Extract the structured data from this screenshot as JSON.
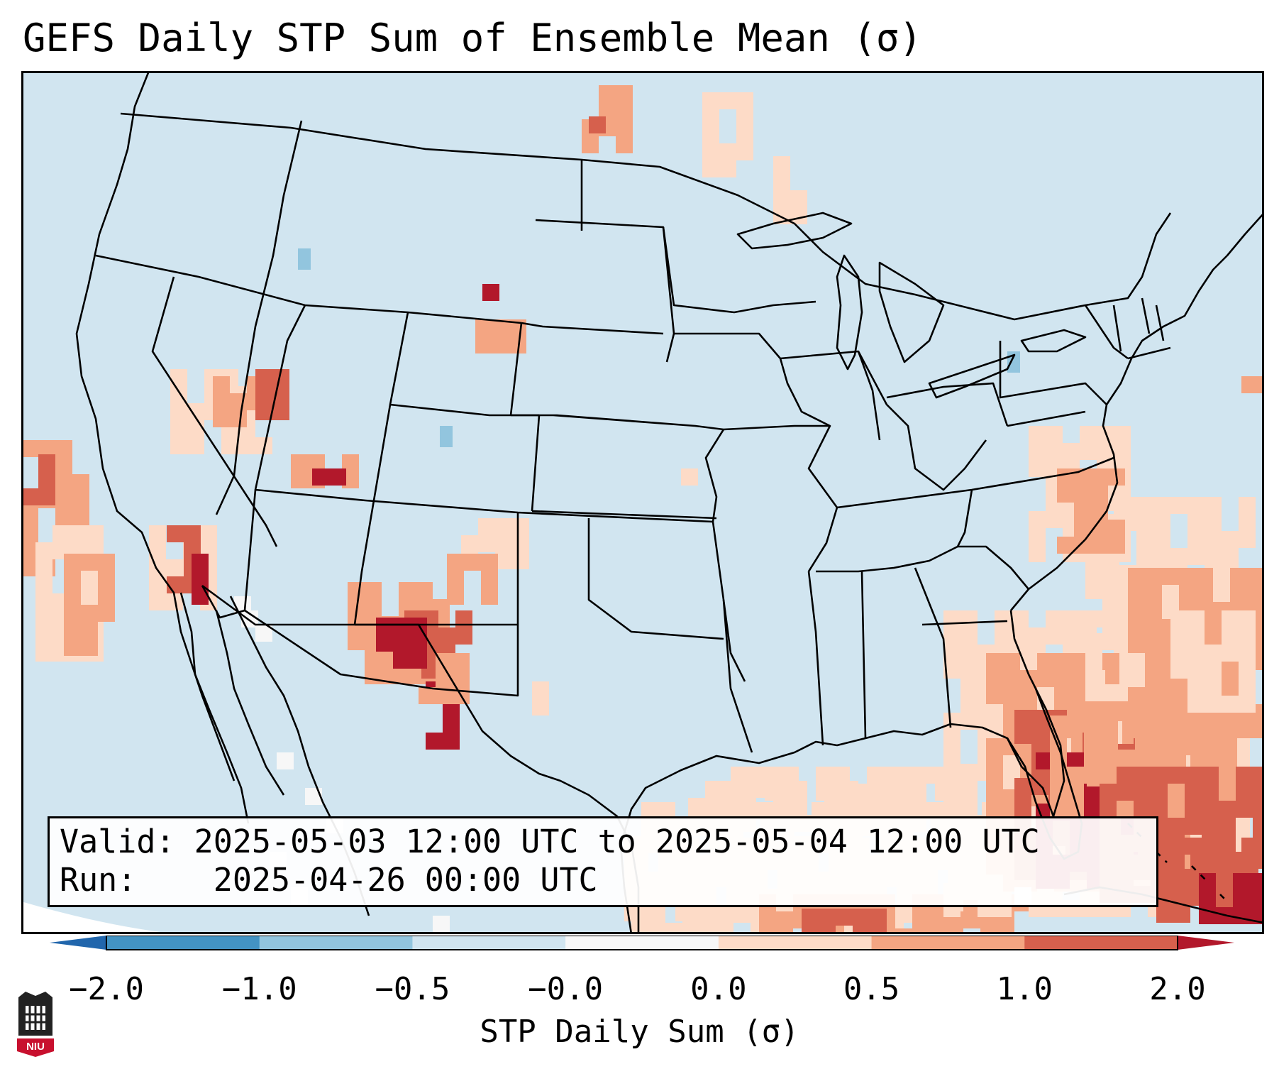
{
  "title": "GEFS Daily STP Sum of Ensemble Mean (σ)",
  "info": {
    "valid_label": "Valid:",
    "valid_value": "2025-05-03 12:00 UTC to 2025-05-04 12:00 UTC",
    "run_label": "Run:",
    "run_value": "2025-04-26 00:00 UTC"
  },
  "colorbar": {
    "label": "STP Daily Sum (σ)",
    "ticks": [
      "−2.0",
      "−1.0",
      "−0.5",
      "−0.0",
      "0.0",
      "0.5",
      "1.0",
      "2.0"
    ],
    "bins": [
      {
        "range": "-2.0 to -1.0",
        "color": "#4393c3"
      },
      {
        "range": "-1.0 to -0.5",
        "color": "#92c5de"
      },
      {
        "range": "-0.5 to -0.0",
        "color": "#d1e5f0"
      },
      {
        "range": "-0.0 to 0.0",
        "color": "#f7f7f7"
      },
      {
        "range": "0.0 to 0.5",
        "color": "#fddbc7"
      },
      {
        "range": "0.5 to 1.0",
        "color": "#f4a582"
      },
      {
        "range": "1.0 to 2.0",
        "color": "#d6604d"
      }
    ],
    "under_color": "#2166ac",
    "over_color": "#b2182b"
  },
  "map": {
    "background_color": "#d1e5f0",
    "border_color": "#000000",
    "region": "Contiguous United States, southern Canada, northern Mexico, Gulf of Mexico and western Atlantic"
  },
  "logo": {
    "text": "NIU"
  }
}
